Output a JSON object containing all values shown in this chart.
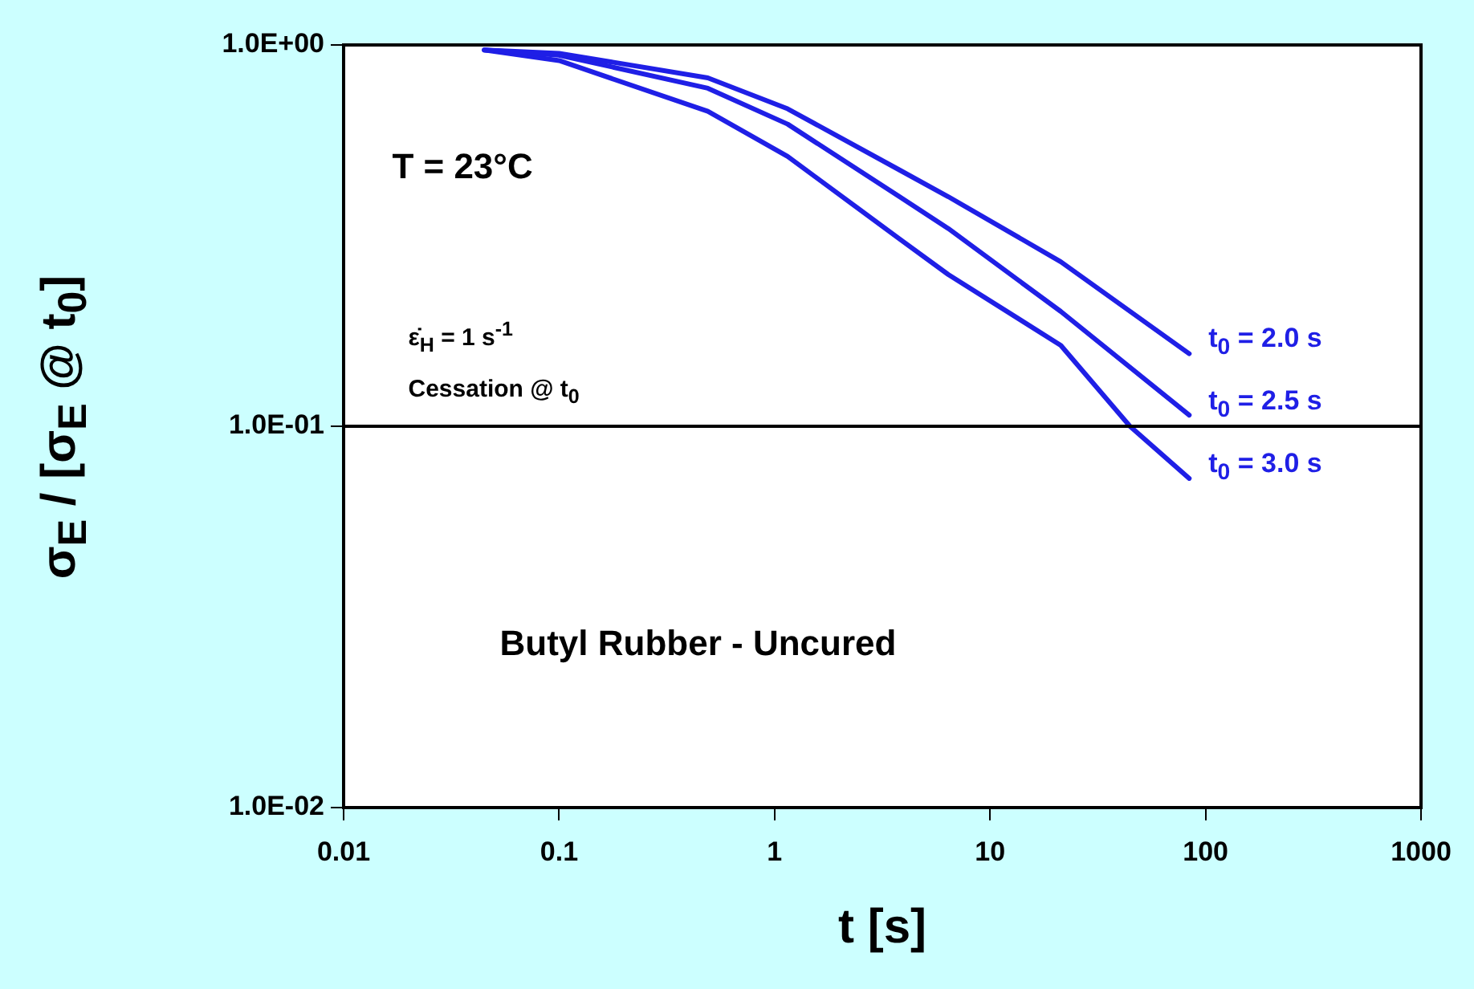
{
  "chart_data": {
    "type": "line",
    "xlabel": "t [s]",
    "ylabel": "σ$_{E}$ / [σ$_{E}$ @ t$_{0}$]",
    "log": "xy",
    "grid": false,
    "legend": false,
    "marker": "none",
    "line_style": "solid",
    "xlim": [
      0.01,
      1000
    ],
    "xticks": [
      0.01,
      0.1,
      1,
      10,
      100,
      1000
    ],
    "ylim": [
      0.01,
      1
    ],
    "yticks": [
      {
        "value": 0.01,
        "label": "1.0E-02"
      },
      {
        "value": 0.1,
        "label": "1.0E-01"
      },
      {
        "value": 1,
        "label": "1.0E+00"
      }
    ],
    "ref_lines": [
      {
        "axis": "y",
        "value": 0.1,
        "color": "#000000"
      }
    ],
    "annotations": [
      "T = 23°C",
      "ε̇$_{H}$ = 1 s$^{-1}$",
      "Cessation @ t$_{0}$",
      "Butyl Rubber - Uncured"
    ],
    "series": [
      {
        "name": "t$_{0}$ = 2.0 s",
        "color": "#1f1fe6",
        "x": [
          0.045,
          0.1,
          0.49,
          1.15,
          3.8,
          6.4,
          21.3,
          84
        ],
        "values": [
          0.97,
          0.95,
          0.82,
          0.68,
          0.47,
          0.4,
          0.27,
          0.155
        ]
      },
      {
        "name": "t$_{0}$ = 2.5 s",
        "color": "#1f1fe6",
        "x": [
          0.045,
          0.1,
          0.49,
          1.15,
          3.8,
          6.4,
          21.3,
          84
        ],
        "values": [
          0.97,
          0.94,
          0.77,
          0.62,
          0.4,
          0.33,
          0.2,
          0.107
        ]
      },
      {
        "name": "t$_{0}$ = 3.0 s",
        "color": "#1f1fe6",
        "x": [
          0.045,
          0.1,
          0.49,
          1.15,
          3.8,
          6.4,
          21.3,
          44.6,
          84
        ],
        "values": [
          0.97,
          0.91,
          0.67,
          0.51,
          0.31,
          0.25,
          0.163,
          0.1,
          0.073
        ]
      }
    ]
  }
}
